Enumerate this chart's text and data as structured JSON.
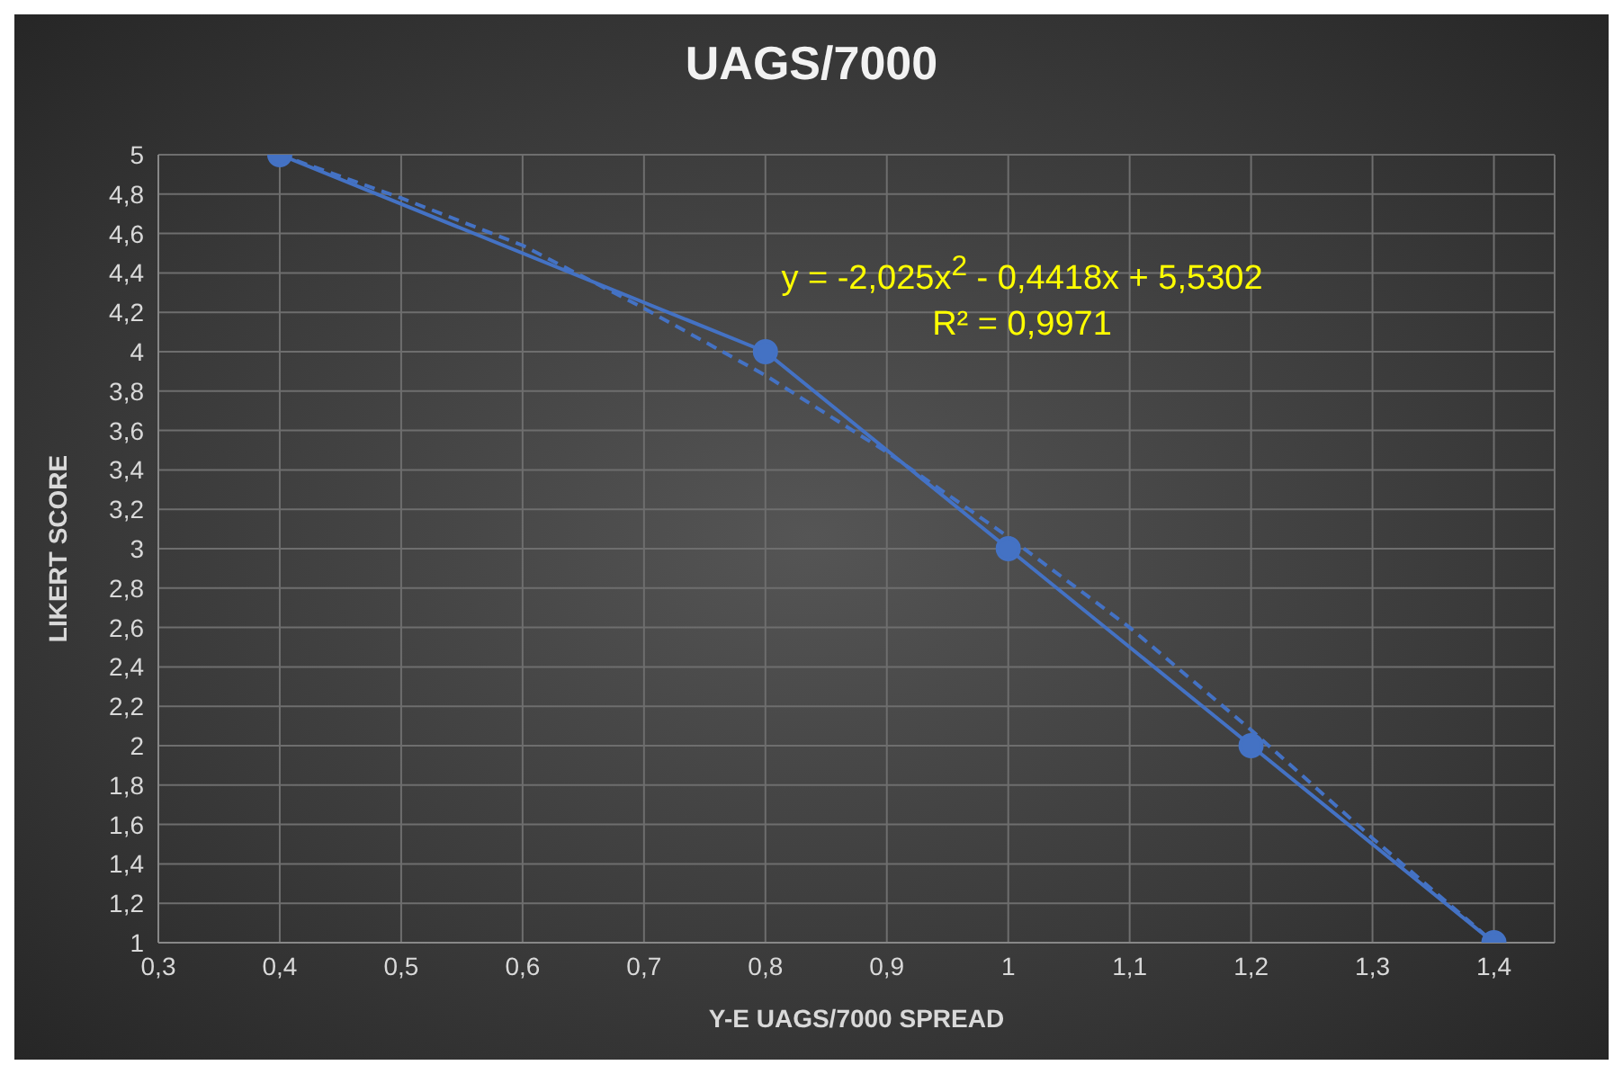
{
  "chart_data": {
    "type": "line",
    "title": "UAGS/7000",
    "xlabel": "Y-E UAGS/7000  SPREAD",
    "ylabel": "LIKERT SCORE",
    "annotations": [
      "y = -2,025x$^{2}$ - 0,4418x + 5,5302",
      "R² = 0,9971"
    ],
    "x": [
      0.4,
      0.8,
      1,
      1.2,
      1.4
    ],
    "series": [
      {
        "color": "#4472c4",
        "values": [
          5,
          4,
          3,
          2,
          1
        ],
        "marker": "circle",
        "line_style": "solid"
      },
      {
        "color": "#4472c4",
        "x": [
          0.4,
          0.5,
          0.6,
          0.7,
          0.8,
          0.9,
          1.0,
          1.1,
          1.2,
          1.3,
          1.4
        ],
        "values": [
          5.0,
          4.78,
          4.54,
          4.22,
          3.88,
          3.49,
          3.06,
          2.6,
          2.08,
          1.53,
          1.0
        ],
        "marker": "none",
        "line_style": "dashed"
      }
    ],
    "xlim": [
      0.3,
      1.45
    ],
    "xticks": [
      {
        "value": 0.3,
        "label": "0,3"
      },
      {
        "value": 0.4,
        "label": "0,4"
      },
      {
        "value": 0.5,
        "label": "0,5"
      },
      {
        "value": 0.6,
        "label": "0,6"
      },
      {
        "value": 0.7,
        "label": "0,7"
      },
      {
        "value": 0.8,
        "label": "0,8"
      },
      {
        "value": 0.9,
        "label": "0,9"
      },
      1,
      {
        "value": 1.1,
        "label": "1,1"
      },
      {
        "value": 1.2,
        "label": "1,2"
      },
      {
        "value": 1.3,
        "label": "1,3"
      },
      {
        "value": 1.4,
        "label": "1,4"
      }
    ],
    "ylim": [
      1,
      5
    ],
    "yticks": [
      1,
      {
        "value": 1.2,
        "label": "1,2"
      },
      {
        "value": 1.4,
        "label": "1,4"
      },
      {
        "value": 1.6,
        "label": "1,6"
      },
      {
        "value": 1.8,
        "label": "1,8"
      },
      2,
      {
        "value": 2.2,
        "label": "2,2"
      },
      {
        "value": 2.4,
        "label": "2,4"
      },
      {
        "value": 2.6,
        "label": "2,6"
      },
      {
        "value": 2.8,
        "label": "2,8"
      },
      3,
      {
        "value": 3.2,
        "label": "3,2"
      },
      {
        "value": 3.4,
        "label": "3,4"
      },
      {
        "value": 3.6,
        "label": "3,6"
      },
      {
        "value": 3.8,
        "label": "3,8"
      },
      4,
      {
        "value": 4.2,
        "label": "4,2"
      },
      {
        "value": 4.4,
        "label": "4,4"
      },
      {
        "value": 4.6,
        "label": "4,6"
      },
      {
        "value": 4.8,
        "label": "4,8"
      },
      5
    ],
    "grid": true
  }
}
